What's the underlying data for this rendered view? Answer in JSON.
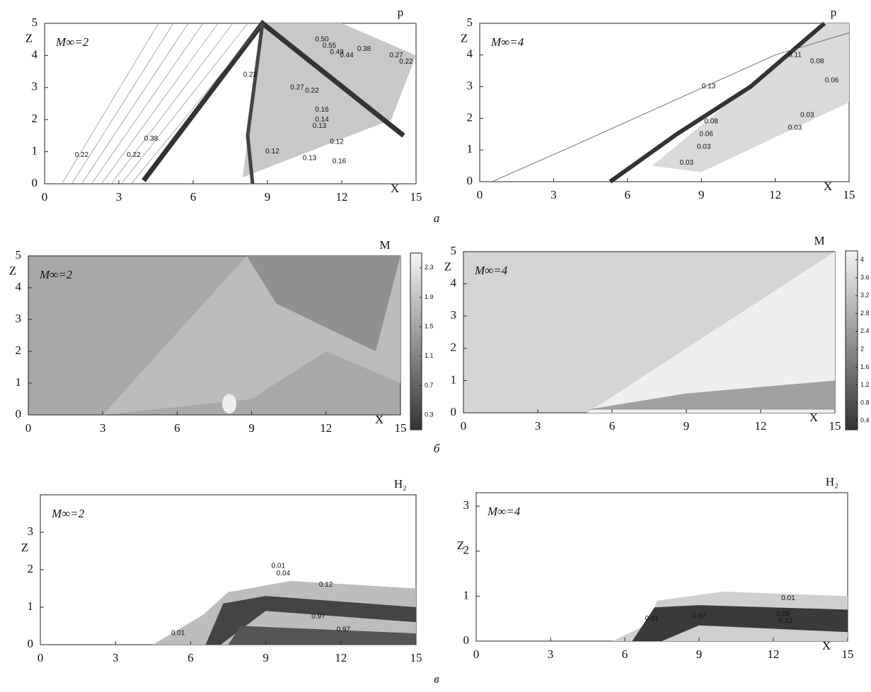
{
  "chart_data": [
    {
      "type": "contour",
      "field_label": "p",
      "annotation": "M∞=2",
      "xlabel": "X",
      "ylabel": "Z",
      "xlim": [
        0,
        15
      ],
      "ylim": [
        0,
        5
      ],
      "xticks": [
        0,
        3,
        6,
        9,
        12,
        15
      ],
      "yticks": [
        0,
        1,
        2,
        3,
        4,
        5
      ],
      "contour_labels": [
        "0.22",
        "0.22",
        "0.38",
        "0.22",
        "0.50",
        "0.55",
        "0.49",
        "0.44",
        "0.38",
        "0.27",
        "0.22",
        "0.27",
        "0.22",
        "0.16",
        "0.14",
        "0.13",
        "0.12",
        "0.13",
        "0.12",
        "0.16"
      ]
    },
    {
      "type": "contour",
      "field_label": "p",
      "annotation": "M∞=4",
      "xlabel": "X",
      "ylabel": "Z",
      "xlim": [
        0,
        15
      ],
      "ylim": [
        0,
        5
      ],
      "xticks": [
        0,
        3,
        6,
        9,
        12,
        15
      ],
      "yticks": [
        0,
        1,
        2,
        3,
        4,
        5
      ],
      "contour_labels": [
        "0.11",
        "0.08",
        "0.06",
        "0.03",
        "0.03",
        "0.13",
        "0.08",
        "0.06",
        "0.03",
        "0.03"
      ]
    },
    {
      "type": "heatmap",
      "field_label": "M",
      "annotation": "M∞=2",
      "xlabel": "X",
      "ylabel": "Z",
      "xlim": [
        0,
        15
      ],
      "ylim": [
        0,
        5
      ],
      "xticks": [
        0,
        3,
        6,
        9,
        12,
        15
      ],
      "yticks": [
        0,
        1,
        2,
        3,
        4,
        5
      ],
      "clim": [
        0.1,
        2.5
      ],
      "cticks": [
        2.3,
        1.9,
        1.5,
        1.1,
        0.7,
        0.3
      ]
    },
    {
      "type": "heatmap",
      "field_label": "M",
      "annotation": "M∞=4",
      "xlabel": "X",
      "ylabel": "Z",
      "xlim": [
        0,
        15
      ],
      "ylim": [
        0,
        5
      ],
      "xticks": [
        0,
        3,
        6,
        9,
        12,
        15
      ],
      "yticks": [
        0,
        1,
        2,
        3,
        4,
        5
      ],
      "clim": [
        0.2,
        4.2
      ],
      "cticks": [
        4.0,
        3.6,
        3.2,
        2.8,
        2.4,
        2.0,
        1.6,
        1.2,
        0.8,
        0.4
      ]
    },
    {
      "type": "contour",
      "field_label": "H₂",
      "annotation": "M∞=2",
      "xlabel": null,
      "ylabel": "Z",
      "xlim": [
        0,
        15
      ],
      "ylim": [
        0,
        4
      ],
      "xticks": [
        0,
        3,
        6,
        9,
        12,
        15
      ],
      "yticks": [
        0,
        1,
        2,
        3
      ],
      "contour_labels": [
        "0.01",
        "0.04",
        "0.12",
        "0.97",
        "0.97",
        "0.01"
      ]
    },
    {
      "type": "contour",
      "field_label": "H₂",
      "annotation": "M∞=4",
      "xlabel": "X",
      "ylabel": "Z",
      "xlim": [
        0,
        15
      ],
      "ylim": [
        0,
        3.3
      ],
      "xticks": [
        0,
        3,
        6,
        9,
        12,
        15
      ],
      "yticks": [
        0,
        1,
        2,
        3
      ],
      "contour_labels": [
        "0.01",
        "0.05",
        "0.12",
        "0.97",
        "0.01"
      ]
    }
  ],
  "panel_labels": [
    "а",
    "б",
    "в"
  ]
}
